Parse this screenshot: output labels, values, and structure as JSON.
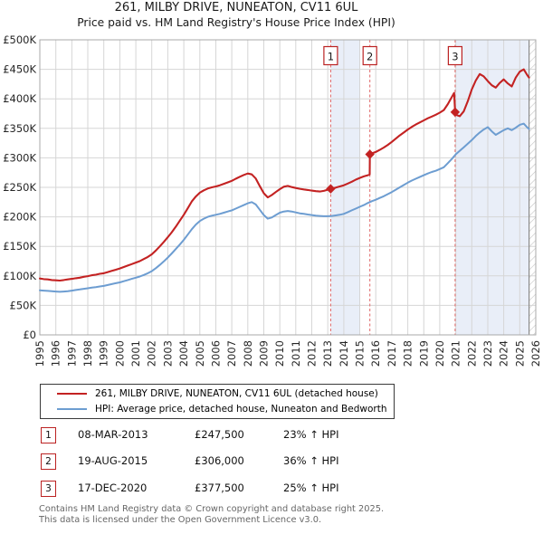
{
  "chart_data": {
    "type": "line",
    "title": "261, MILBY DRIVE, NUNEATON, CV11 6UL",
    "subtitle": "Price paid vs. HM Land Registry's House Price Index (HPI)",
    "unit": "GBP_thousands",
    "xlim": [
      1995,
      2026
    ],
    "ylim": [
      0,
      500
    ],
    "grid": true,
    "legend_position": "below-left",
    "x_ticks": [
      1995,
      1996,
      1997,
      1998,
      1999,
      2000,
      2001,
      2002,
      2003,
      2004,
      2005,
      2006,
      2007,
      2008,
      2009,
      2010,
      2011,
      2012,
      2013,
      2014,
      2015,
      2016,
      2017,
      2018,
      2019,
      2020,
      2021,
      2022,
      2023,
      2024,
      2025,
      2026
    ],
    "y_tick_values": [
      0,
      50,
      100,
      150,
      200,
      250,
      300,
      350,
      400,
      450,
      500
    ],
    "y_tick_labels": [
      "£0",
      "£50K",
      "£100K",
      "£150K",
      "£200K",
      "£250K",
      "£300K",
      "£350K",
      "£400K",
      "£450K",
      "£500K"
    ],
    "colors": {
      "red": "#c32222",
      "blue": "#6d9dd1",
      "band": "#e9eef8",
      "grid": "#d6d6d6",
      "spine": "#a8a8a8",
      "dashed": "#e06666",
      "box_border": "#bb2222",
      "hatch": "#c4c4c4",
      "data_end_line": "#8a8a8a"
    },
    "ownership_bands": [
      [
        2013.18,
        2015.0
      ],
      [
        2020.96,
        2025.58
      ]
    ],
    "data_end_x": 2025.58,
    "hatch_end_x": 2026,
    "sales_markers": [
      {
        "label": "1",
        "x": 2013.18,
        "value": 247.5
      },
      {
        "label": "2",
        "x": 2015.63,
        "value": 306
      },
      {
        "label": "3",
        "x": 2020.96,
        "value": 377.5
      }
    ],
    "series": [
      {
        "name": "261, MILBY DRIVE, NUNEATON, CV11 6UL (detached house)",
        "color": "#c32222",
        "points": [
          [
            1995,
            95.5
          ],
          [
            1995.25,
            94.5
          ],
          [
            1995.5,
            94
          ],
          [
            1995.75,
            93
          ],
          [
            1996,
            92.5
          ],
          [
            1996.25,
            92
          ],
          [
            1996.5,
            93
          ],
          [
            1996.75,
            94
          ],
          [
            1997,
            95
          ],
          [
            1997.25,
            96
          ],
          [
            1997.5,
            97
          ],
          [
            1997.75,
            98.5
          ],
          [
            1998,
            99.5
          ],
          [
            1998.25,
            101
          ],
          [
            1998.5,
            102
          ],
          [
            1998.75,
            103.5
          ],
          [
            1999,
            104.5
          ],
          [
            1999.25,
            106.5
          ],
          [
            1999.5,
            108.5
          ],
          [
            1999.75,
            110.5
          ],
          [
            2000,
            112.5
          ],
          [
            2000.25,
            115
          ],
          [
            2000.5,
            117.5
          ],
          [
            2000.75,
            120
          ],
          [
            2001,
            122.5
          ],
          [
            2001.25,
            125
          ],
          [
            2001.5,
            128.5
          ],
          [
            2001.75,
            132
          ],
          [
            2002,
            136.5
          ],
          [
            2002.25,
            143
          ],
          [
            2002.5,
            150
          ],
          [
            2002.75,
            157.5
          ],
          [
            2003,
            165.5
          ],
          [
            2003.25,
            174
          ],
          [
            2003.5,
            183.5
          ],
          [
            2003.75,
            193.5
          ],
          [
            2004,
            203.5
          ],
          [
            2004.25,
            214.5
          ],
          [
            2004.5,
            226
          ],
          [
            2004.75,
            234.5
          ],
          [
            2005,
            241
          ],
          [
            2005.25,
            245
          ],
          [
            2005.5,
            248
          ],
          [
            2005.75,
            250
          ],
          [
            2006,
            251.5
          ],
          [
            2006.25,
            253.5
          ],
          [
            2006.5,
            256
          ],
          [
            2006.75,
            258.5
          ],
          [
            2007,
            261
          ],
          [
            2007.25,
            264.5
          ],
          [
            2007.5,
            268
          ],
          [
            2007.75,
            271
          ],
          [
            2008,
            273.5
          ],
          [
            2008.25,
            272
          ],
          [
            2008.5,
            265
          ],
          [
            2008.75,
            252
          ],
          [
            2009,
            240
          ],
          [
            2009.25,
            233
          ],
          [
            2009.5,
            237
          ],
          [
            2009.75,
            242
          ],
          [
            2010,
            247
          ],
          [
            2010.25,
            251
          ],
          [
            2010.5,
            252.5
          ],
          [
            2010.75,
            250.5
          ],
          [
            2011,
            249
          ],
          [
            2011.25,
            247.5
          ],
          [
            2011.5,
            246.5
          ],
          [
            2011.75,
            245.5
          ],
          [
            2012,
            244.5
          ],
          [
            2012.25,
            243.5
          ],
          [
            2012.5,
            243
          ],
          [
            2012.75,
            244
          ],
          [
            2013,
            246
          ],
          [
            2013.18,
            247.5
          ],
          [
            2013.5,
            249.5
          ],
          [
            2013.75,
            251.5
          ],
          [
            2014,
            253.5
          ],
          [
            2014.25,
            256.5
          ],
          [
            2014.5,
            259.5
          ],
          [
            2014.75,
            263
          ],
          [
            2015,
            266
          ],
          [
            2015.25,
            268.5
          ],
          [
            2015.5,
            270.5
          ],
          [
            2015.62,
            272
          ],
          [
            2015.63,
            306
          ],
          [
            2015.75,
            307.5
          ],
          [
            2016,
            310
          ],
          [
            2016.25,
            313.5
          ],
          [
            2016.5,
            317.5
          ],
          [
            2016.75,
            322
          ],
          [
            2017,
            327
          ],
          [
            2017.25,
            332.5
          ],
          [
            2017.5,
            338
          ],
          [
            2017.75,
            343
          ],
          [
            2018,
            348
          ],
          [
            2018.25,
            352.5
          ],
          [
            2018.5,
            356.5
          ],
          [
            2018.75,
            360
          ],
          [
            2019,
            363.5
          ],
          [
            2019.25,
            367
          ],
          [
            2019.5,
            370
          ],
          [
            2019.75,
            373
          ],
          [
            2020,
            376.5
          ],
          [
            2020.25,
            381
          ],
          [
            2020.5,
            391
          ],
          [
            2020.75,
            403
          ],
          [
            2020.9,
            410
          ],
          [
            2020.96,
            377.5
          ],
          [
            2021,
            373
          ],
          [
            2021.25,
            370.5
          ],
          [
            2021.5,
            379
          ],
          [
            2021.75,
            396
          ],
          [
            2022,
            416
          ],
          [
            2022.25,
            431
          ],
          [
            2022.5,
            442
          ],
          [
            2022.75,
            438
          ],
          [
            2023,
            430
          ],
          [
            2023.25,
            423
          ],
          [
            2023.5,
            419
          ],
          [
            2023.75,
            427
          ],
          [
            2024,
            433
          ],
          [
            2024.25,
            426
          ],
          [
            2024.5,
            421
          ],
          [
            2024.75,
            436
          ],
          [
            2025,
            446
          ],
          [
            2025.25,
            450
          ],
          [
            2025.45,
            441
          ],
          [
            2025.58,
            436
          ]
        ]
      },
      {
        "name": "HPI: Average price, detached house, Nuneaton and Bedworth",
        "color": "#6d9dd1",
        "points": [
          [
            1995,
            75.5
          ],
          [
            1995.25,
            75
          ],
          [
            1995.5,
            74.5
          ],
          [
            1995.75,
            74
          ],
          [
            1996,
            73.5
          ],
          [
            1996.25,
            73
          ],
          [
            1996.5,
            73.5
          ],
          [
            1996.75,
            74
          ],
          [
            1997,
            75
          ],
          [
            1997.25,
            76
          ],
          [
            1997.5,
            77
          ],
          [
            1997.75,
            78
          ],
          [
            1998,
            79
          ],
          [
            1998.25,
            80
          ],
          [
            1998.5,
            81
          ],
          [
            1998.75,
            82
          ],
          [
            1999,
            83
          ],
          [
            1999.25,
            84.5
          ],
          [
            1999.5,
            86
          ],
          [
            1999.75,
            87.5
          ],
          [
            2000,
            89
          ],
          [
            2000.25,
            91
          ],
          [
            2000.5,
            93
          ],
          [
            2000.75,
            95
          ],
          [
            2001,
            97
          ],
          [
            2001.25,
            99
          ],
          [
            2001.5,
            101.5
          ],
          [
            2001.75,
            104.5
          ],
          [
            2002,
            108
          ],
          [
            2002.25,
            113
          ],
          [
            2002.5,
            118.5
          ],
          [
            2002.75,
            124.5
          ],
          [
            2003,
            131
          ],
          [
            2003.25,
            138
          ],
          [
            2003.5,
            145.5
          ],
          [
            2003.75,
            153
          ],
          [
            2004,
            161
          ],
          [
            2004.25,
            170
          ],
          [
            2004.5,
            179
          ],
          [
            2004.75,
            187
          ],
          [
            2005,
            193
          ],
          [
            2005.25,
            197
          ],
          [
            2005.5,
            200
          ],
          [
            2005.75,
            202
          ],
          [
            2006,
            203.5
          ],
          [
            2006.25,
            205
          ],
          [
            2006.5,
            207
          ],
          [
            2006.75,
            209
          ],
          [
            2007,
            211
          ],
          [
            2007.25,
            214
          ],
          [
            2007.5,
            217
          ],
          [
            2007.75,
            220
          ],
          [
            2008,
            223
          ],
          [
            2008.25,
            225
          ],
          [
            2008.5,
            221
          ],
          [
            2008.75,
            212
          ],
          [
            2009,
            203
          ],
          [
            2009.25,
            197
          ],
          [
            2009.5,
            199
          ],
          [
            2009.75,
            203
          ],
          [
            2010,
            207
          ],
          [
            2010.25,
            209
          ],
          [
            2010.5,
            210
          ],
          [
            2010.75,
            209
          ],
          [
            2011,
            207.5
          ],
          [
            2011.25,
            206
          ],
          [
            2011.5,
            205
          ],
          [
            2011.75,
            204
          ],
          [
            2012,
            203
          ],
          [
            2012.25,
            202
          ],
          [
            2012.5,
            201.5
          ],
          [
            2012.75,
            201
          ],
          [
            2013,
            201
          ],
          [
            2013.25,
            201.5
          ],
          [
            2013.5,
            202.5
          ],
          [
            2013.75,
            203.5
          ],
          [
            2014,
            205
          ],
          [
            2014.25,
            208
          ],
          [
            2014.5,
            211
          ],
          [
            2014.75,
            214
          ],
          [
            2015,
            217
          ],
          [
            2015.25,
            220
          ],
          [
            2015.5,
            223.5
          ],
          [
            2015.75,
            226.5
          ],
          [
            2016,
            229
          ],
          [
            2016.25,
            232
          ],
          [
            2016.5,
            235
          ],
          [
            2016.75,
            238.5
          ],
          [
            2017,
            242
          ],
          [
            2017.25,
            246
          ],
          [
            2017.5,
            250
          ],
          [
            2017.75,
            254
          ],
          [
            2018,
            258
          ],
          [
            2018.25,
            261.5
          ],
          [
            2018.5,
            264.5
          ],
          [
            2018.75,
            267.5
          ],
          [
            2019,
            270.5
          ],
          [
            2019.25,
            273.5
          ],
          [
            2019.5,
            276
          ],
          [
            2019.75,
            278
          ],
          [
            2020,
            281
          ],
          [
            2020.25,
            284
          ],
          [
            2020.5,
            291
          ],
          [
            2020.75,
            298
          ],
          [
            2021,
            306
          ],
          [
            2021.25,
            312
          ],
          [
            2021.5,
            318
          ],
          [
            2021.75,
            324
          ],
          [
            2022,
            330
          ],
          [
            2022.25,
            337
          ],
          [
            2022.5,
            343
          ],
          [
            2022.75,
            348
          ],
          [
            2023,
            352
          ],
          [
            2023.25,
            345
          ],
          [
            2023.5,
            339
          ],
          [
            2023.75,
            343
          ],
          [
            2024,
            347
          ],
          [
            2024.25,
            350
          ],
          [
            2024.5,
            347
          ],
          [
            2024.75,
            351
          ],
          [
            2025,
            356
          ],
          [
            2025.25,
            358
          ],
          [
            2025.45,
            352
          ],
          [
            2025.58,
            349
          ]
        ]
      }
    ]
  },
  "events": [
    {
      "num": "1",
      "date": "08-MAR-2013",
      "price": "£247,500",
      "vs_hpi": "23% ↑ HPI"
    },
    {
      "num": "2",
      "date": "19-AUG-2015",
      "price": "£306,000",
      "vs_hpi": "36% ↑ HPI"
    },
    {
      "num": "3",
      "date": "17-DEC-2020",
      "price": "£377,500",
      "vs_hpi": "25% ↑ HPI"
    }
  ],
  "footer": {
    "line1": "Contains HM Land Registry data © Crown copyright and database right 2025.",
    "line2": "This data is licensed under the Open Government Licence v3.0."
  }
}
